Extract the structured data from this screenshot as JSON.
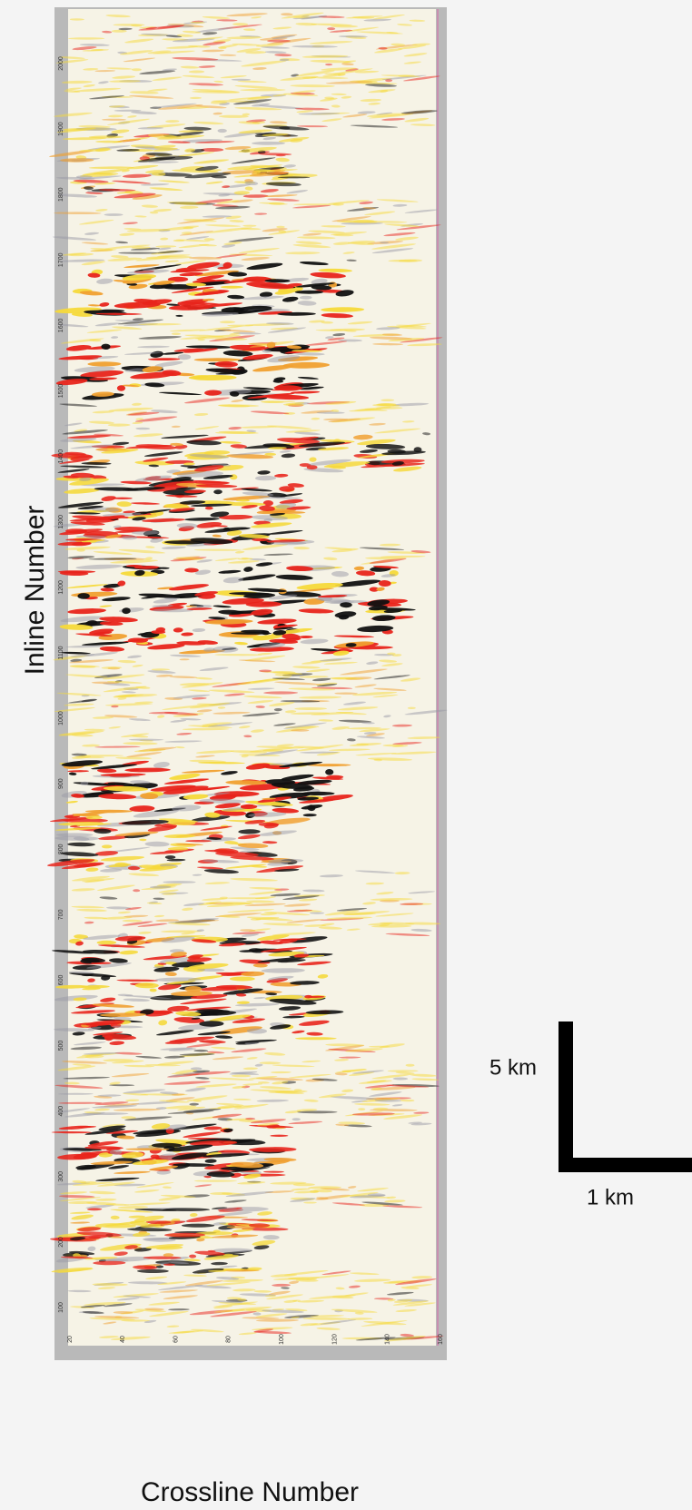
{
  "figure": {
    "y_axis_label": "Inline Number",
    "x_axis_label": "Crossline Number",
    "y_tick_labels": [
      "2000",
      "1900",
      "1800",
      "1700",
      "1600",
      "1500",
      "1400",
      "1300",
      "1200",
      "1100",
      "1000",
      "900",
      "800",
      "700",
      "600",
      "500",
      "400",
      "300",
      "200",
      "100"
    ],
    "x_tick_labels": [
      "20",
      "40",
      "60",
      "80",
      "100",
      "120",
      "140",
      "160"
    ],
    "scale_vertical": "5 km",
    "scale_horizontal": "1 km"
  }
}
